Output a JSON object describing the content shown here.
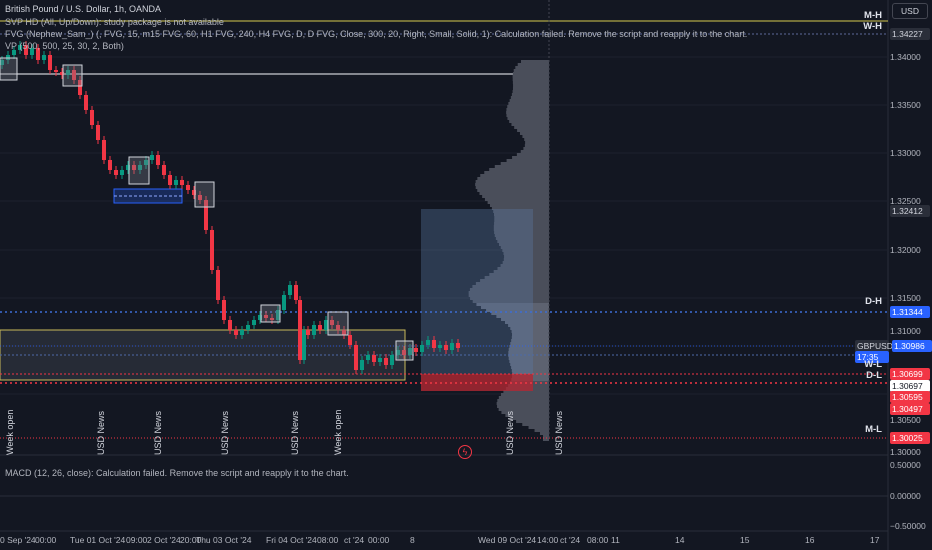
{
  "legend": {
    "title": "British Pound / U.S. Dollar, 1h, OANDA",
    "line1": "SVP HD (All, Up/Down): study package is not available",
    "line2": "FVG (Nephew_Sam_) (, FVG, 15, m15 FVG, 60, H1 FVG, 240, H4 FVG, D, D FVG, Close, 300, 20, Right, Small, Solid, 1): Calculation failed. Remove the script and reapply it to the chart.",
    "line3": "VP (500, 500, 25, 30, 2, Both)",
    "macd": "MACD (12, 26, close): Calculation failed. Remove the script and reapply it to the chart."
  },
  "currency_button": "USD",
  "price_axis": [
    "1.34000",
    "1.33500",
    "1.33000",
    "1.32500",
    "1.32000",
    "1.31500",
    "1.31000",
    "1.30500",
    "1.30000"
  ],
  "macd_axis": [
    "0.50000",
    "0.00000",
    "−0.50000"
  ],
  "price_badges": [
    {
      "text": "1.34227",
      "color": "#2a2e39",
      "fg": "#d1d4dc"
    },
    {
      "text": "1.32412",
      "color": "#2a2e39",
      "fg": "#d1d4dc"
    },
    {
      "text": "1.31344",
      "color": "#2962ff",
      "fg": "#ffffff"
    },
    {
      "text": "GBPUSD",
      "color": "#2a2e39",
      "fg": "#d1d4dc"
    },
    {
      "text": "1.30986",
      "color": "#2962ff",
      "fg": "#ffffff"
    },
    {
      "text": "17:35",
      "color": "#2962ff",
      "fg": "#ffffff"
    },
    {
      "text": "1.30699",
      "color": "#f23645",
      "fg": "#ffffff"
    },
    {
      "text": "1.30697",
      "color": "#ffffff",
      "fg": "#131722"
    },
    {
      "text": "1.30595",
      "color": "#f23645",
      "fg": "#ffffff"
    },
    {
      "text": "1.30497",
      "color": "#f23645",
      "fg": "#ffffff"
    },
    {
      "text": "1.30025",
      "color": "#f23645",
      "fg": "#ffffff"
    }
  ],
  "level_labels": [
    "M-H",
    "W-H",
    "D-H",
    "W-L",
    "D-L",
    "M-L"
  ],
  "event_labels": [
    "Week open",
    "USD News",
    "USD News",
    "USD News",
    "USD News",
    "Week open",
    "USD News",
    "USD News"
  ],
  "time_axis": [
    "0 Sep '24",
    "00:00",
    "Tue 01 Oct '24",
    "09:00",
    "2 Oct '24",
    "20:00",
    "Thu 03 Oct '24",
    "Fri 04 Oct '24",
    "08:00",
    "ct '24",
    "00:00",
    "8",
    "Wed 09 Oct '24",
    "14:00",
    "ct '24",
    "08:00",
    "11",
    "14",
    "15",
    "16",
    "17"
  ],
  "chart_data": {
    "type": "candlestick",
    "title": "British Pound / U.S. Dollar, 1h, OANDA",
    "ylim": [
      1.296,
      1.3435
    ],
    "last_price": 1.30986
  }
}
